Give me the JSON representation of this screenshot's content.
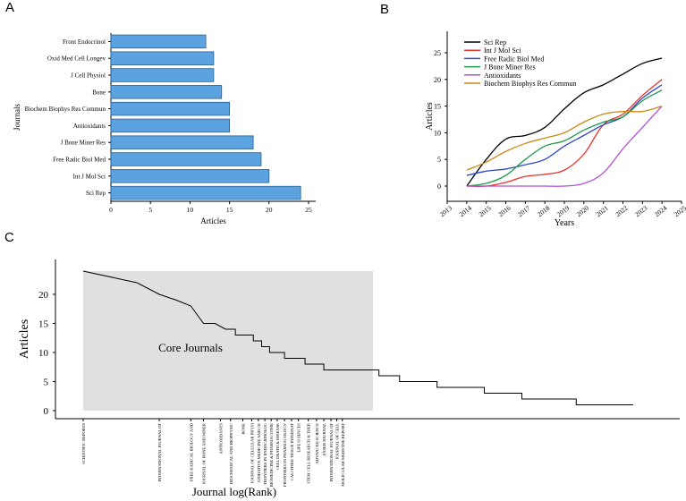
{
  "panels": {
    "a": "A",
    "b": "B",
    "c": "C"
  },
  "colors": {
    "bar": "#5ba3e0",
    "bar_stroke": "#2a5f8f",
    "core_fill": "#e0e0e0"
  },
  "chart_data": [
    {
      "id": "A",
      "type": "bar",
      "orientation": "horizontal",
      "xlabel": "Articles",
      "ylabel": "Journals",
      "xlim": [
        0,
        25
      ],
      "xticks": [
        "0",
        "5",
        "10",
        "15",
        "20",
        "25"
      ],
      "categories": [
        "Front Endocrinol",
        "Oxid Med Cell Longev",
        "J Cell Physiol",
        "Bone",
        "Biochem Biophys Res Commun",
        "Antioxidants",
        "J Bone Miner Res",
        "Free Radic Biol Med",
        "Int J Mol Sci",
        "Sci Rep"
      ],
      "values": [
        12,
        13,
        13,
        14,
        15,
        15,
        18,
        19,
        20,
        24
      ]
    },
    {
      "id": "B",
      "type": "line",
      "xlabel": "Years",
      "ylabel": "Articles",
      "xlim": [
        2013,
        2025
      ],
      "ylim": [
        0,
        25
      ],
      "x_ticks": [
        "2013",
        "2014",
        "2015",
        "2016",
        "2017",
        "2018",
        "2019",
        "2020",
        "2021",
        "2022",
        "2023",
        "2024",
        "2025"
      ],
      "y_ticks": [
        "0",
        "5",
        "10",
        "15",
        "20",
        "25"
      ],
      "x": [
        2014,
        2015,
        2016,
        2017,
        2018,
        2019,
        2020,
        2021,
        2022,
        2023,
        2024
      ],
      "series": [
        {
          "name": "Sci Rep",
          "color": "#000000",
          "values": [
            0,
            5,
            8.8,
            9.5,
            11,
            14.5,
            17.5,
            19,
            21,
            23,
            24
          ]
        },
        {
          "name": "Int J Mol Sci",
          "color": "#e8302a",
          "values": [
            0,
            0,
            0.7,
            1.8,
            2.2,
            3,
            6,
            11.5,
            13.5,
            17,
            20
          ]
        },
        {
          "name": "Free Radic Biol Med",
          "color": "#2b46c8",
          "values": [
            2,
            2.8,
            3.2,
            4,
            5,
            7.5,
            9.5,
            11.5,
            13,
            16.5,
            19
          ]
        },
        {
          "name": "J Bone Miner Res",
          "color": "#1a9a4a",
          "values": [
            0,
            0.5,
            2,
            5,
            7.5,
            8.5,
            10.5,
            12,
            13,
            16,
            18
          ]
        },
        {
          "name": "Antioxidants",
          "color": "#b24fd8",
          "values": [
            0,
            0,
            0,
            0,
            0,
            0,
            0.5,
            2.5,
            7,
            11,
            15
          ]
        },
        {
          "name": "Biochem Biophys Res Commun",
          "color": "#c88a12",
          "values": [
            3,
            4.5,
            6.5,
            8,
            9,
            10,
            12,
            13.5,
            14,
            14,
            15
          ]
        }
      ]
    },
    {
      "id": "C",
      "type": "line",
      "xlabel": "Journal log(Rank)",
      "ylabel": "Articles",
      "ylim": [
        0,
        24
      ],
      "y_ticks": [
        "0",
        "5",
        "10",
        "15",
        "20"
      ],
      "annotation": "Core Journals",
      "core_count": 30,
      "ranks": [
        1,
        2,
        3,
        4,
        5,
        6,
        7,
        8,
        9,
        10,
        11,
        12,
        13,
        14,
        15,
        16,
        17,
        18,
        19,
        20,
        21,
        22,
        23,
        24,
        25,
        26,
        27,
        28,
        29,
        30,
        32,
        35,
        40,
        50,
        60,
        72,
        85,
        100,
        115,
        130,
        150,
        170,
        200,
        230,
        270,
        320,
        500
      ],
      "values": [
        24,
        22,
        20,
        19,
        18,
        15,
        15,
        14,
        13,
        13,
        12,
        11,
        10,
        10,
        9,
        9,
        9,
        8,
        8,
        8,
        7,
        7,
        7,
        7,
        7,
        7,
        7,
        7,
        7,
        7,
        6,
        6,
        5,
        5,
        4,
        4,
        4,
        3,
        3,
        3,
        2,
        2,
        2,
        2,
        1,
        1,
        1
      ],
      "labeled_journals": [
        {
          "rank": 1,
          "label": "SCIENTIFIC REPORTS"
        },
        {
          "rank": 3,
          "label": "INTERNATIONAL JOURNAL OF"
        },
        {
          "rank": 5,
          "label": "FREE RADICAL BIOLOGY AND"
        },
        {
          "rank": 6,
          "label": "JOURNAL OF BONE AND MINER"
        },
        {
          "rank": 7.5,
          "label": "ANTIOXIDANTS"
        },
        {
          "rank": 8.5,
          "label": "BIOCHEMICAL AND BIOPHYSIC"
        },
        {
          "rank": 9.8,
          "label": "BONE"
        },
        {
          "rank": 10.8,
          "label": "JOURNAL OF CELLULAR PHYSI"
        },
        {
          "rank": 11.6,
          "label": "OXIDATIVE MEDICINE AND CE"
        },
        {
          "rank": 12.4,
          "label": "FRONTIERS IN ENDOCRINOLOG"
        },
        {
          "rank": 13.2,
          "label": "BIOMEDICINE & PHARMACOTHE"
        },
        {
          "rank": 14,
          "label": "CELL DEATH & DISEASE"
        },
        {
          "rank": 15,
          "label": "FRONTIERS IN PHARMACOLOGY"
        },
        {
          "rank": 16,
          "label": "CALCIFIED TISSUE INTERNAT"
        },
        {
          "rank": 17,
          "label": "LIFE SCIENCES"
        },
        {
          "rank": 18.5,
          "label": "STEM CELL RESEARCH & THER"
        },
        {
          "rank": 19.8,
          "label": "ADVANCED SCIENCE"
        },
        {
          "rank": 21,
          "label": "FASEB JOURNAL"
        },
        {
          "rank": 22.2,
          "label": "INTERNATIONAL JOURNAL OF"
        },
        {
          "rank": 23.2,
          "label": "JOURNAL OF CELL"
        },
        {
          "rank": 24.2,
          "label": "MOLECULAR MEDICINE REPORT"
        }
      ]
    }
  ]
}
